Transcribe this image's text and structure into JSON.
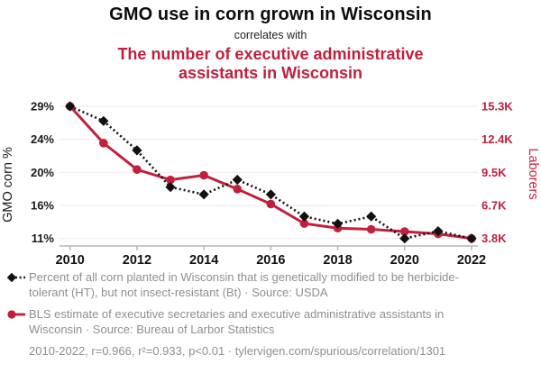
{
  "header": {
    "title": "GMO use in corn grown in Wisconsin",
    "connector": "correlates with",
    "subtitle": "The number of executive administrative assistants in Wisconsin"
  },
  "colors": {
    "accent_red": "#c0203c",
    "series_black": "#111111",
    "legend_gray": "#8f8f8f",
    "gridline": "#ededed",
    "axis_line": "#b5b5b5"
  },
  "chart_data": {
    "type": "line",
    "title": "GMO use in corn grown in Wisconsin vs. executive administrative assistants in Wisconsin",
    "x": [
      2010,
      2011,
      2012,
      2013,
      2014,
      2015,
      2016,
      2017,
      2018,
      2019,
      2020,
      2021,
      2022
    ],
    "x_ticks": [
      2010,
      2012,
      2014,
      2016,
      2018,
      2020,
      2022
    ],
    "series": [
      {
        "name": "GMO corn %",
        "axis": "left",
        "color": "#111111",
        "line_style": "dotted",
        "marker": "diamond",
        "values": [
          29,
          27,
          23,
          18,
          17,
          19,
          17,
          14,
          13,
          14,
          11,
          12,
          11
        ]
      },
      {
        "name": "Laborers",
        "axis": "right",
        "color": "#c0203c",
        "line_style": "solid",
        "marker": "circle",
        "values": [
          15.3,
          12.1,
          9.8,
          8.9,
          9.3,
          8.1,
          6.8,
          5.1,
          4.7,
          4.6,
          4.4,
          4.2,
          3.8
        ]
      }
    ],
    "left_axis": {
      "label": "GMO corn %",
      "unit": "%",
      "min": 11,
      "max": 29,
      "tick_values": [
        29,
        24.5,
        20,
        15.5,
        11
      ],
      "tick_labels": [
        "29%",
        "24%",
        "20%",
        "16%",
        "11%"
      ]
    },
    "right_axis": {
      "label": "Laborers",
      "unit": "K",
      "min": 3.8,
      "max": 15.3,
      "tick_values": [
        15.3,
        12.425,
        9.55,
        6.675,
        3.8
      ],
      "tick_labels": [
        "15.3K",
        "12.4K",
        "9.5K",
        "6.7K",
        "3.8K"
      ]
    },
    "grid": true,
    "legend_position": "bottom"
  },
  "legend": {
    "series1": "Percent of all corn planted in Wisconsin that is genetically modified to be herbicide-tolerant (HT), but not insect-resistant (Bt) · Source: USDA",
    "series2": "BLS estimate of executive secretaries and executive administrative assistants in Wisconsin · Source: Bureau of Larbor Statistics",
    "stats": "2010-2022, r=0.966, r²=0.933, p<0.01 · tylervigen.com/spurious/correlation/1301"
  }
}
